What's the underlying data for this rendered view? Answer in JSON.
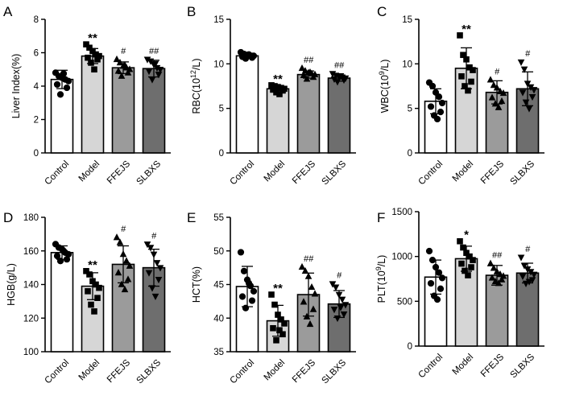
{
  "colors": {
    "bar_fills": [
      "#ffffff",
      "#d6d6d6",
      "#9b9b9b",
      "#6e6e6e"
    ],
    "axis": "#000000",
    "marker": "#000000"
  },
  "marker_shapes": [
    "circle",
    "square",
    "triangle-up",
    "triangle-down"
  ],
  "categories": [
    "Control",
    "Model",
    "FFEJS",
    "SLBXS"
  ],
  "chart_data": [
    {
      "panel": "A",
      "type": "bar",
      "ylabel": "Liver Index(%)",
      "ylim": [
        0,
        8
      ],
      "yticks": [
        0,
        2,
        4,
        6,
        8
      ],
      "categories": [
        "Control",
        "Model",
        "FFEJS",
        "SLBXS"
      ],
      "values": [
        4.4,
        5.8,
        5.1,
        5.05
      ],
      "errors": [
        0.55,
        0.45,
        0.35,
        0.5
      ],
      "significance": [
        "",
        "**",
        "#",
        "##"
      ],
      "points": [
        [
          4.8,
          4.6,
          4.5,
          4.4,
          4.3,
          4.1,
          3.9,
          3.5,
          4.75
        ],
        [
          6.5,
          6.3,
          6.1,
          5.9,
          5.8,
          5.7,
          5.6,
          5.4,
          5.0
        ],
        [
          5.6,
          5.4,
          5.2,
          5.1,
          5.0,
          4.9,
          4.8,
          4.6,
          5.25
        ],
        [
          5.6,
          5.5,
          5.3,
          5.1,
          5.0,
          4.9,
          4.7,
          4.4,
          5.35
        ]
      ],
      "grid": false,
      "legend": "none"
    },
    {
      "panel": "B",
      "type": "bar",
      "ylabel": "RBC(10^12/L)",
      "ylim": [
        0,
        15
      ],
      "yticks": [
        0,
        5,
        10,
        15
      ],
      "categories": [
        "Control",
        "Model",
        "FFEJS",
        "SLBXS"
      ],
      "values": [
        10.9,
        7.2,
        8.8,
        8.4
      ],
      "errors": [
        0.3,
        0.35,
        0.4,
        0.35
      ],
      "significance": [
        "",
        "**",
        "##",
        "##"
      ],
      "points": [
        [
          11.3,
          11.1,
          11.0,
          10.9,
          10.9,
          10.8,
          10.7,
          10.6,
          11.05
        ],
        [
          7.6,
          7.5,
          7.4,
          7.3,
          7.2,
          7.1,
          7.0,
          6.8,
          6.6
        ],
        [
          9.5,
          9.2,
          9.0,
          8.9,
          8.8,
          8.7,
          8.5,
          8.3,
          9.05
        ],
        [
          8.9,
          8.7,
          8.6,
          8.5,
          8.4,
          8.3,
          8.2,
          8.0,
          8.65
        ]
      ],
      "grid": false,
      "legend": "none"
    },
    {
      "panel": "C",
      "type": "bar",
      "ylabel": "WBC(10^9/L)",
      "ylim": [
        0,
        15
      ],
      "yticks": [
        0,
        5,
        10,
        15
      ],
      "categories": [
        "Control",
        "Model",
        "FFEJS",
        "SLBXS"
      ],
      "values": [
        5.8,
        9.5,
        6.8,
        7.2
      ],
      "errors": [
        1.4,
        2.3,
        1.3,
        1.9
      ],
      "significance": [
        "",
        "**",
        "#",
        "#"
      ],
      "points": [
        [
          7.9,
          7.5,
          6.8,
          6.3,
          5.6,
          5.2,
          4.6,
          4.2,
          3.8
        ],
        [
          13.2,
          11.0,
          10.5,
          9.6,
          9.3,
          8.6,
          8.0,
          7.5,
          7.0
        ],
        [
          8.2,
          7.6,
          7.3,
          6.9,
          6.7,
          6.2,
          5.8,
          5.5,
          5.1
        ],
        [
          10.2,
          9.4,
          7.8,
          7.4,
          7.1,
          6.8,
          6.3,
          5.7,
          5.0
        ]
      ],
      "grid": false,
      "legend": "none"
    },
    {
      "panel": "D",
      "type": "bar",
      "ylabel": "HGB(g/L)",
      "ylim": [
        100,
        180
      ],
      "yticks": [
        100,
        120,
        140,
        160,
        180
      ],
      "categories": [
        "Control",
        "Model",
        "FFEJS",
        "SLBXS"
      ],
      "values": [
        159,
        139,
        152,
        150
      ],
      "errors": [
        4,
        8,
        11,
        11
      ],
      "significance": [
        "",
        "**",
        "#",
        "#"
      ],
      "points": [
        [
          164,
          162,
          161,
          159,
          158,
          157,
          155,
          154,
          160
        ],
        [
          148,
          146,
          142,
          140,
          138,
          136,
          132,
          128,
          124
        ],
        [
          168,
          165,
          158,
          154,
          151,
          147,
          143,
          140,
          137
        ],
        [
          164,
          162,
          158,
          153,
          150,
          147,
          143,
          138,
          133
        ]
      ],
      "grid": false,
      "legend": "none"
    },
    {
      "panel": "E",
      "type": "bar",
      "ylabel": "HCT(%)",
      "ylim": [
        35,
        55
      ],
      "yticks": [
        35,
        40,
        45,
        50,
        55
      ],
      "categories": [
        "Control",
        "Model",
        "FFEJS",
        "SLBXS"
      ],
      "values": [
        44.7,
        39.6,
        43.5,
        42.1
      ],
      "errors": [
        3.0,
        2.3,
        3.2,
        2.0
      ],
      "significance": [
        "",
        "**",
        "##",
        "#"
      ],
      "points": [
        [
          49.8,
          47.0,
          45.7,
          44.8,
          44.0,
          43.2,
          42.6,
          41.5,
          45.2
        ],
        [
          43.5,
          42.0,
          40.5,
          39.8,
          39.2,
          38.5,
          37.6,
          36.7,
          38.2
        ],
        [
          47.6,
          47.0,
          46.2,
          44.6,
          43.6,
          42.4,
          41.3,
          40.2,
          39.1
        ],
        [
          45.1,
          44.6,
          43.5,
          42.8,
          42.0,
          41.3,
          40.6,
          40.0,
          41.6
        ]
      ],
      "grid": false,
      "legend": "none"
    },
    {
      "panel": "F",
      "type": "bar",
      "ylabel": "PLT(10^9/L)",
      "ylim": [
        0,
        1500
      ],
      "yticks": [
        0,
        500,
        1000,
        1500
      ],
      "categories": [
        "Control",
        "Model",
        "FFEJS",
        "SLBXS"
      ],
      "values": [
        770,
        975,
        790,
        815
      ],
      "errors": [
        190,
        140,
        110,
        110
      ],
      "significance": [
        "",
        "*",
        "##",
        "#"
      ],
      "points": [
        [
          1060,
          960,
          880,
          820,
          760,
          700,
          640,
          560,
          520
        ],
        [
          1170,
          1100,
          1040,
          1000,
          960,
          920,
          880,
          840,
          790
        ],
        [
          920,
          870,
          830,
          800,
          780,
          760,
          740,
          720,
          700
        ],
        [
          990,
          900,
          860,
          830,
          800,
          780,
          740,
          700,
          720
        ]
      ],
      "grid": false,
      "legend": "none"
    }
  ]
}
